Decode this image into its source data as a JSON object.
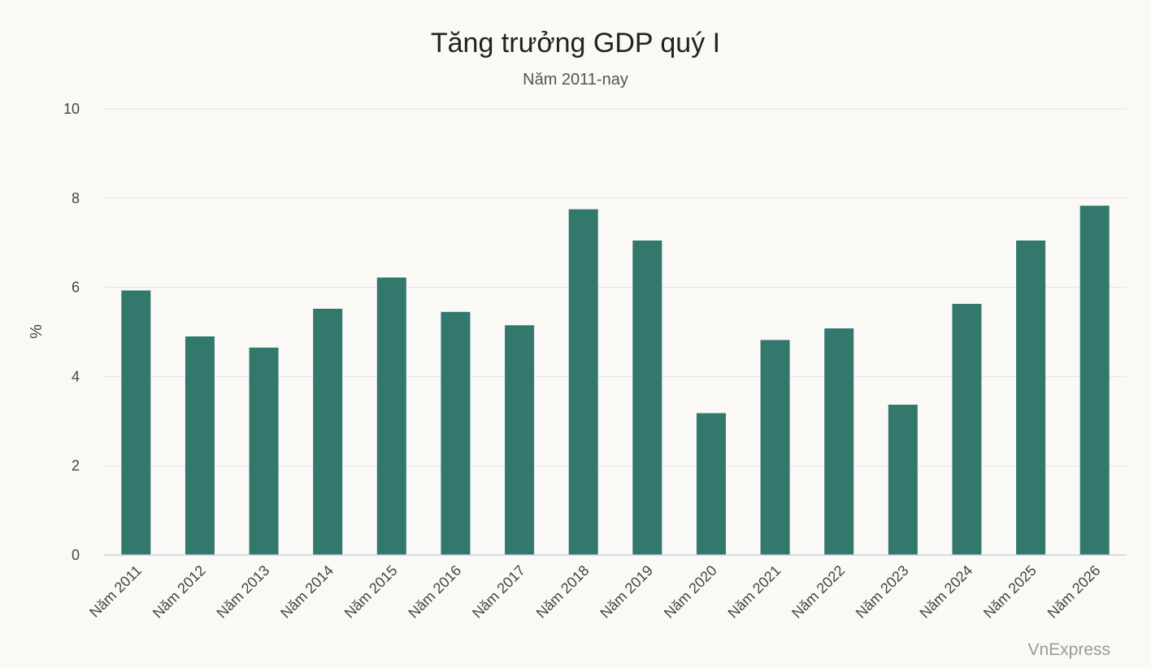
{
  "chart_data": {
    "type": "bar",
    "title": "Tăng trưởng GDP quý I",
    "subtitle": "Năm 2011-nay",
    "xlabel": "",
    "ylabel": "%",
    "ylim": [
      0,
      10
    ],
    "yticks": [
      0,
      2,
      4,
      6,
      8,
      10
    ],
    "grid": true,
    "categories": [
      "Năm 2011",
      "Năm 2012",
      "Năm 2013",
      "Năm 2014",
      "Năm 2015",
      "Năm 2016",
      "Năm 2017",
      "Năm 2018",
      "Năm 2019",
      "Năm 2020",
      "Năm 2021",
      "Năm 2022",
      "Năm 2023",
      "Năm 2024",
      "Năm 2025",
      "Năm 2026"
    ],
    "values": [
      5.93,
      4.9,
      4.65,
      5.52,
      6.22,
      5.45,
      5.15,
      7.75,
      7.05,
      3.18,
      4.82,
      5.08,
      3.37,
      5.63,
      7.05,
      7.83
    ],
    "bar_color": "#33786c"
  },
  "watermark": "VnExpress"
}
